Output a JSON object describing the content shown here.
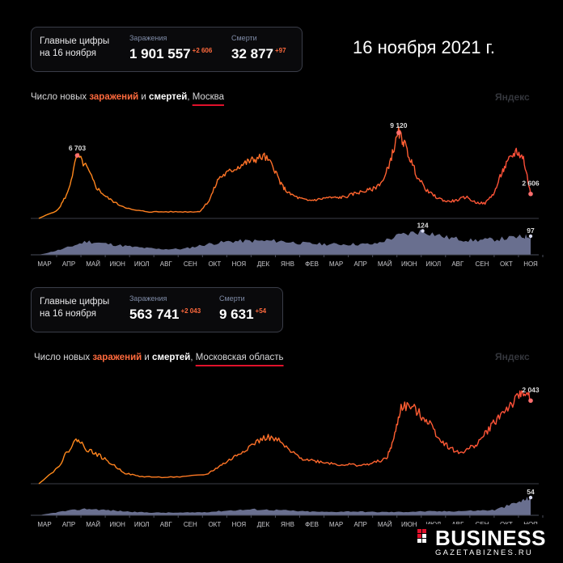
{
  "date_heading": "16 ноября 2021 г.",
  "watermark": "Яндекс",
  "moscow": {
    "summary": {
      "title_line1": "Главные цифры",
      "title_line2": "на 16 ноября",
      "infections_label": "Заражения",
      "infections_value": "1 901 557",
      "infections_delta": "+2 606",
      "deaths_label": "Смерти",
      "deaths_value": "32 877",
      "deaths_delta": "+97"
    },
    "title": {
      "part1": "Число новых ",
      "part2": "заражений",
      "part3": " и ",
      "part4": "смертей",
      "part5": ", ",
      "region": "Москва"
    }
  },
  "oblast": {
    "summary": {
      "title_line1": "Главные цифры",
      "title_line2": "на 16 ноября",
      "infections_label": "Заражения",
      "infections_value": "563 741",
      "infections_delta": "+2 043",
      "deaths_label": "Смерти",
      "deaths_value": "9 631",
      "deaths_delta": "+54"
    },
    "title": {
      "part1": "Число новых ",
      "part2": "заражений",
      "part3": " и ",
      "part4": "смертей",
      "part5": ", ",
      "region": "Московская область"
    }
  },
  "colors": {
    "infections_start": "#ff8c1a",
    "infections_end": "#ff4e3a",
    "deaths_fill": "#7b83a8",
    "underline": "#e0112b"
  },
  "logo": {
    "main": "BUSINESS",
    "sub": "GAZETABIZNES.RU"
  },
  "chart_data": [
    {
      "type": "area",
      "name": "moscow",
      "months": [
        "МАР",
        "АПР",
        "МАЙ",
        "ИЮН",
        "ИЮЛ",
        "АВГ",
        "СЕН",
        "ОКТ",
        "НОЯ",
        "ДЕК",
        "ЯНВ",
        "ФЕВ",
        "МАР",
        "АПР",
        "МАЙ",
        "ИЮН",
        "ИЮЛ",
        "АВГ",
        "СЕН",
        "ОКТ",
        "НОЯ"
      ],
      "infections": {
        "x": [
          0,
          0.8,
          1.2,
          1.6,
          2.0,
          2.4,
          2.8,
          3.3,
          3.9,
          4.6,
          5.4,
          6.2,
          6.7,
          7.1,
          7.5,
          7.9,
          8.3,
          8.7,
          9.0,
          9.4,
          9.8,
          10.1,
          10.4,
          10.8,
          11.2,
          11.6,
          12.0,
          12.4,
          12.8,
          13.2,
          13.6,
          14.0,
          14.4,
          14.7,
          15.0,
          15.2,
          15.5,
          15.8,
          16.2,
          16.6,
          17.0,
          17.4,
          17.8,
          18.2,
          18.6,
          19.0,
          19.3,
          19.6,
          19.9,
          20.2,
          20.5
        ],
        "y": [
          0,
          900,
          2700,
          6703,
          5400,
          3300,
          2300,
          1500,
          900,
          700,
          700,
          700,
          720,
          1900,
          4300,
          4900,
          5500,
          6000,
          6300,
          6600,
          5400,
          3600,
          2700,
          2200,
          1900,
          2000,
          2200,
          2200,
          2300,
          2700,
          2900,
          3200,
          4200,
          6600,
          9120,
          8200,
          6200,
          4300,
          2900,
          2200,
          1800,
          1900,
          2300,
          1700,
          1600,
          2800,
          4900,
          6200,
          7200,
          6400,
          2606
        ],
        "peak_labels": [
          {
            "x": 1.6,
            "y": 6703,
            "label": "6 703"
          },
          {
            "x": 15.0,
            "y": 9120,
            "label": "9 120"
          },
          {
            "x": 20.5,
            "y": 2606,
            "label": "2 606"
          }
        ]
      },
      "deaths": {
        "x": [
          0,
          1,
          2,
          3,
          4,
          5,
          6,
          7,
          8,
          9,
          10,
          11,
          12,
          13,
          14,
          15,
          16,
          17,
          18,
          19,
          20,
          20.5
        ],
        "y": [
          0,
          30,
          70,
          55,
          40,
          30,
          30,
          55,
          70,
          72,
          72,
          60,
          55,
          55,
          55,
          100,
          124,
          90,
          75,
          80,
          92,
          97
        ],
        "peak_labels": [
          {
            "x": 16,
            "y": 124,
            "label": "124"
          },
          {
            "x": 20.5,
            "y": 97,
            "label": "97"
          }
        ]
      }
    },
    {
      "type": "area",
      "name": "moscow_oblast",
      "months": [
        "МАР",
        "АПР",
        "МАЙ",
        "ИЮН",
        "ИЮЛ",
        "АВГ",
        "СЕН",
        "ОКТ",
        "НОЯ",
        "ДЕК",
        "ЯНВ",
        "ФЕВ",
        "МАР",
        "АПР",
        "МАЙ",
        "ИЮН",
        "ИЮЛ",
        "АВГ",
        "СЕН",
        "ОКТ",
        "НОЯ"
      ],
      "infections": {
        "x": [
          0,
          0.8,
          1.2,
          1.6,
          2.0,
          2.5,
          3.0,
          3.6,
          4.2,
          5.0,
          6.0,
          7.0,
          7.5,
          8.0,
          8.5,
          9.0,
          9.5,
          10.0,
          10.5,
          11.0,
          11.5,
          12.0,
          12.5,
          13.0,
          13.5,
          14.0,
          14.5,
          14.8,
          15.1,
          15.5,
          15.9,
          16.3,
          16.7,
          17.1,
          17.5,
          17.9,
          18.3,
          18.7,
          19.1,
          19.5,
          19.9,
          20.2,
          20.5
        ],
        "y": [
          0,
          400,
          800,
          1100,
          850,
          700,
          500,
          260,
          180,
          160,
          170,
          230,
          420,
          600,
          800,
          1000,
          1150,
          1050,
          780,
          620,
          560,
          520,
          470,
          470,
          450,
          520,
          620,
          1100,
          1900,
          1900,
          1700,
          1500,
          1100,
          900,
          750,
          850,
          1000,
          1300,
          1600,
          1850,
          2050,
          2300,
          2043
        ],
        "peak_labels": [
          {
            "x": 20.5,
            "y": 2043,
            "label": "2 043"
          }
        ]
      },
      "deaths": {
        "x": [
          0,
          1,
          2,
          3,
          4,
          5,
          6,
          7,
          8,
          9,
          10,
          11,
          12,
          13,
          14,
          15,
          16,
          17,
          18,
          19,
          20,
          20.5
        ],
        "y": [
          0,
          12,
          20,
          15,
          10,
          8,
          8,
          10,
          15,
          18,
          16,
          12,
          10,
          12,
          10,
          10,
          12,
          12,
          14,
          16,
          40,
          54
        ],
        "peak_labels": [
          {
            "x": 20.5,
            "y": 54,
            "label": "54"
          }
        ]
      }
    }
  ]
}
